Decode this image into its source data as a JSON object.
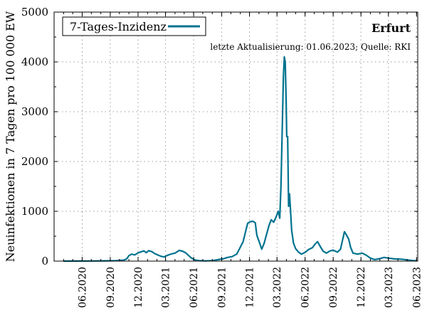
{
  "chart_data": {
    "type": "line",
    "title": "Erfurt",
    "subtitle": "letzte Aktualisierung: 01.06.2023; Quelle: RKI",
    "ylabel": "Neuinfektionen in 7 Tagen pro 100 000 EW",
    "xlabel": "",
    "ylim": [
      0,
      5000
    ],
    "yticks": [
      0,
      1000,
      2000,
      3000,
      4000,
      5000
    ],
    "xlim": [
      "2020-03-01",
      "2023-06-05"
    ],
    "xticks": [
      {
        "date": "2020-06-01",
        "label": "06.2020"
      },
      {
        "date": "2020-09-01",
        "label": "09.2020"
      },
      {
        "date": "2020-12-01",
        "label": "12.2020"
      },
      {
        "date": "2021-03-01",
        "label": "03.2021"
      },
      {
        "date": "2021-06-01",
        "label": "06.2021"
      },
      {
        "date": "2021-09-01",
        "label": "09.2021"
      },
      {
        "date": "2021-12-01",
        "label": "12.2021"
      },
      {
        "date": "2022-03-01",
        "label": "03.2022"
      },
      {
        "date": "2022-06-01",
        "label": "06.2022"
      },
      {
        "date": "2022-09-01",
        "label": "09.2022"
      },
      {
        "date": "2022-12-01",
        "label": "12.2022"
      },
      {
        "date": "2023-03-01",
        "label": "03.2023"
      },
      {
        "date": "2023-06-01",
        "label": "06.2023"
      }
    ],
    "grid": true,
    "legend_position": "top-left",
    "series": [
      {
        "name": "7-Tages-Inzidenz",
        "color": "#00738f",
        "points": [
          [
            "2020-04-01",
            0
          ],
          [
            "2020-05-15",
            2
          ],
          [
            "2020-07-01",
            3
          ],
          [
            "2020-08-15",
            5
          ],
          [
            "2020-09-20",
            8
          ],
          [
            "2020-10-15",
            20
          ],
          [
            "2020-10-25",
            45
          ],
          [
            "2020-11-01",
            110
          ],
          [
            "2020-11-10",
            140
          ],
          [
            "2020-11-20",
            125
          ],
          [
            "2020-12-01",
            165
          ],
          [
            "2020-12-10",
            185
          ],
          [
            "2020-12-20",
            205
          ],
          [
            "2020-12-28",
            170
          ],
          [
            "2021-01-05",
            210
          ],
          [
            "2021-01-15",
            190
          ],
          [
            "2021-01-25",
            150
          ],
          [
            "2021-02-05",
            120
          ],
          [
            "2021-02-15",
            95
          ],
          [
            "2021-02-25",
            85
          ],
          [
            "2021-03-05",
            110
          ],
          [
            "2021-03-20",
            145
          ],
          [
            "2021-04-01",
            160
          ],
          [
            "2021-04-15",
            215
          ],
          [
            "2021-04-25",
            200
          ],
          [
            "2021-05-05",
            170
          ],
          [
            "2021-05-15",
            115
          ],
          [
            "2021-05-25",
            60
          ],
          [
            "2021-06-05",
            25
          ],
          [
            "2021-06-20",
            8
          ],
          [
            "2021-07-10",
            4
          ],
          [
            "2021-08-01",
            10
          ],
          [
            "2021-08-20",
            30
          ],
          [
            "2021-09-05",
            45
          ],
          [
            "2021-09-20",
            75
          ],
          [
            "2021-10-05",
            90
          ],
          [
            "2021-10-20",
            140
          ],
          [
            "2021-11-01",
            280
          ],
          [
            "2021-11-10",
            390
          ],
          [
            "2021-11-18",
            590
          ],
          [
            "2021-11-25",
            760
          ],
          [
            "2021-12-03",
            790
          ],
          [
            "2021-12-12",
            800
          ],
          [
            "2021-12-20",
            770
          ],
          [
            "2021-12-25",
            520
          ],
          [
            "2022-01-01",
            400
          ],
          [
            "2022-01-10",
            240
          ],
          [
            "2022-01-18",
            360
          ],
          [
            "2022-01-26",
            540
          ],
          [
            "2022-02-03",
            720
          ],
          [
            "2022-02-10",
            830
          ],
          [
            "2022-02-18",
            780
          ],
          [
            "2022-02-25",
            870
          ],
          [
            "2022-03-05",
            1000
          ],
          [
            "2022-03-10",
            860
          ],
          [
            "2022-03-14",
            1500
          ],
          [
            "2022-03-18",
            2600
          ],
          [
            "2022-03-22",
            3700
          ],
          [
            "2022-03-25",
            4100
          ],
          [
            "2022-03-28",
            4000
          ],
          [
            "2022-03-31",
            3200
          ],
          [
            "2022-04-02",
            2500
          ],
          [
            "2022-04-05",
            2500
          ],
          [
            "2022-04-08",
            1100
          ],
          [
            "2022-04-11",
            1350
          ],
          [
            "2022-04-14",
            1050
          ],
          [
            "2022-04-18",
            620
          ],
          [
            "2022-04-24",
            360
          ],
          [
            "2022-05-01",
            250
          ],
          [
            "2022-05-10",
            185
          ],
          [
            "2022-05-20",
            140
          ],
          [
            "2022-06-01",
            175
          ],
          [
            "2022-06-12",
            230
          ],
          [
            "2022-06-25",
            270
          ],
          [
            "2022-07-05",
            350
          ],
          [
            "2022-07-12",
            390
          ],
          [
            "2022-07-20",
            300
          ],
          [
            "2022-07-30",
            200
          ],
          [
            "2022-08-10",
            160
          ],
          [
            "2022-08-20",
            200
          ],
          [
            "2022-09-01",
            220
          ],
          [
            "2022-09-15",
            180
          ],
          [
            "2022-09-25",
            240
          ],
          [
            "2022-10-01",
            400
          ],
          [
            "2022-10-08",
            590
          ],
          [
            "2022-10-15",
            520
          ],
          [
            "2022-10-22",
            440
          ],
          [
            "2022-10-28",
            280
          ],
          [
            "2022-11-05",
            160
          ],
          [
            "2022-11-20",
            140
          ],
          [
            "2022-12-05",
            160
          ],
          [
            "2022-12-18",
            120
          ],
          [
            "2023-01-01",
            60
          ],
          [
            "2023-01-15",
            30
          ],
          [
            "2023-02-01",
            50
          ],
          [
            "2023-02-15",
            75
          ],
          [
            "2023-03-01",
            60
          ],
          [
            "2023-03-20",
            45
          ],
          [
            "2023-04-10",
            40
          ],
          [
            "2023-05-01",
            25
          ],
          [
            "2023-05-20",
            12
          ],
          [
            "2023-06-01",
            5
          ]
        ]
      }
    ]
  }
}
